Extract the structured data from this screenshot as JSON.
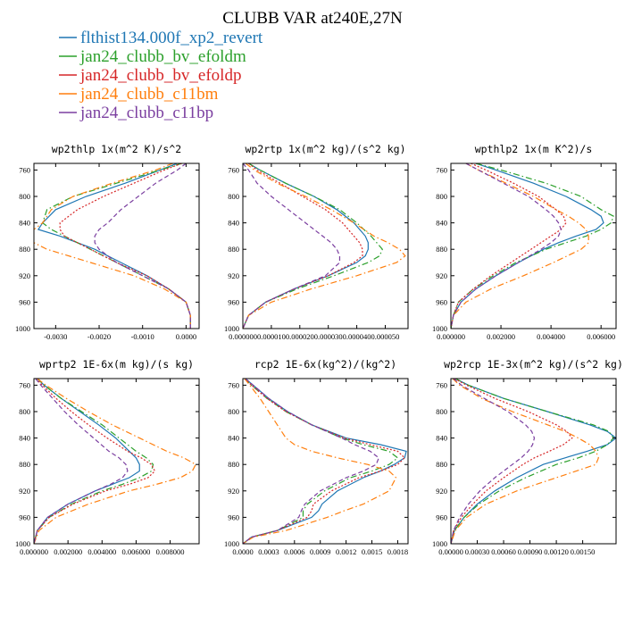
{
  "figure_title": "CLUBB VAR at240E,27N",
  "colors": {
    "flthist134.000f_xp2_revert": "#1f77b4",
    "jan24_clubb_bv_efoldm": "#2ca02c",
    "jan24_clubb_bv_efoldp": "#d62728",
    "jan24_clubb_c11bm": "#ff7f0e",
    "jan24_clubb_c11bp": "#7b3fa0"
  },
  "legend": [
    {
      "label": "flthist134.000f_xp2_revert",
      "color": "#1f77b4",
      "dash": "solid"
    },
    {
      "label": "jan24_clubb_bv_efoldm",
      "color": "#2ca02c",
      "dash": "dashdot"
    },
    {
      "label": "jan24_clubb_bv_efoldp",
      "color": "#d62728",
      "dash": "dotted"
    },
    {
      "label": "jan24_clubb_c11bm",
      "color": "#ff7f0e",
      "dash": "dashdot"
    },
    {
      "label": "jan24_clubb_c11bp",
      "color": "#7b3fa0",
      "dash": "dashed"
    }
  ],
  "chart_data": [
    {
      "type": "line",
      "title": "wp2thlp 1x(m^2 K)/s^2",
      "xlim": [
        -0.0035,
        0.0003
      ],
      "ylim": [
        1000,
        750
      ],
      "xticks": [
        -0.003,
        -0.002,
        -0.001,
        0.0
      ],
      "xtick_labels": [
        "-0.0030",
        "-0.0020",
        "-0.0010",
        "0.0000"
      ],
      "yticks": [
        760,
        800,
        840,
        880,
        920,
        960,
        1000
      ],
      "y": [
        750,
        760,
        780,
        800,
        820,
        840,
        850,
        860,
        870,
        880,
        900,
        920,
        940,
        960,
        980,
        1000
      ],
      "series": [
        {
          "name": "flthist134.000f_xp2_revert",
          "x": [
            -0.0002,
            -0.0006,
            -0.0014,
            -0.0023,
            -0.003,
            -0.0033,
            -0.0034,
            -0.0029,
            -0.0025,
            -0.0021,
            -0.0015,
            -0.0009,
            -0.0004,
            0.0,
            0.0001,
            0.0001
          ]
        },
        {
          "name": "jan24_clubb_bv_efoldm",
          "x": [
            -0.0001,
            -0.0006,
            -0.0016,
            -0.0026,
            -0.0032,
            -0.0033,
            -0.0031,
            -0.0028,
            -0.0025,
            -0.0022,
            -0.0016,
            -0.001,
            -0.0004,
            0.0,
            0.0001,
            0.0001
          ]
        },
        {
          "name": "jan24_clubb_bv_efoldp",
          "x": [
            -0.0001,
            -0.0005,
            -0.0012,
            -0.0019,
            -0.0025,
            -0.0029,
            -0.0029,
            -0.0028,
            -0.0025,
            -0.0022,
            -0.0016,
            -0.0009,
            -0.0004,
            0.0,
            0.0001,
            0.0001
          ]
        },
        {
          "name": "jan24_clubb_c11bm",
          "x": [
            -0.0003,
            -0.0007,
            -0.0017,
            -0.0026,
            -0.0031,
            -0.0033,
            -0.0035,
            -0.0036,
            -0.0035,
            -0.0032,
            -0.0022,
            -0.0012,
            -0.0005,
            0.0,
            0.0001,
            0.0001
          ]
        },
        {
          "name": "jan24_clubb_c11bp",
          "x": [
            -0.0,
            -0.0002,
            -0.0007,
            -0.0011,
            -0.0015,
            -0.0018,
            -0.002,
            -0.0021,
            -0.0021,
            -0.002,
            -0.0016,
            -0.001,
            -0.0004,
            0.0,
            0.0001,
            0.0001
          ]
        }
      ]
    },
    {
      "type": "line",
      "title": "wp2rtp 1x(m^2 kg)/(s^2 kg)",
      "xlim": [
        0.0,
        5.8e-05
      ],
      "ylim": [
        1000,
        750
      ],
      "xticks": [
        0.0,
        1e-05,
        2e-05,
        3e-05,
        4e-05,
        5e-05
      ],
      "xtick_labels": [
        "0.000000",
        "0.000010",
        "0.000020",
        "0.000030",
        "0.000040",
        "0.000050"
      ],
      "yticks": [
        760,
        800,
        840,
        880,
        920,
        960,
        1000
      ],
      "y": [
        750,
        760,
        780,
        800,
        820,
        840,
        860,
        870,
        880,
        890,
        900,
        920,
        940,
        960,
        980,
        1000
      ],
      "series": [
        {
          "name": "flthist134.000f_xp2_revert",
          "x": [
            2e-06,
            6e-06,
            1.5e-05,
            2.5e-05,
            3.3e-05,
            3.9e-05,
            4.3e-05,
            4.4e-05,
            4.4e-05,
            4.3e-05,
            4e-05,
            3e-05,
            1.8e-05,
            8e-06,
            2e-06,
            0.0
          ]
        },
        {
          "name": "jan24_clubb_bv_efoldm",
          "x": [
            2e-06,
            6e-06,
            1.5e-05,
            2.5e-05,
            3.4e-05,
            4e-05,
            4.5e-05,
            4.7e-05,
            4.9e-05,
            4.8e-05,
            4.4e-05,
            3.2e-05,
            1.9e-05,
            8e-06,
            2e-06,
            0.0
          ]
        },
        {
          "name": "jan24_clubb_bv_efoldp",
          "x": [
            2e-06,
            5e-06,
            1.3e-05,
            2.1e-05,
            2.9e-05,
            3.5e-05,
            3.9e-05,
            4.1e-05,
            4.2e-05,
            4.2e-05,
            3.9e-05,
            3e-05,
            1.8e-05,
            8e-06,
            2e-06,
            0.0
          ]
        },
        {
          "name": "jan24_clubb_c11bm",
          "x": [
            1e-06,
            4e-06,
            1.2e-05,
            2.2e-05,
            3.1e-05,
            3.9e-05,
            4.6e-05,
            5.1e-05,
            5.5e-05,
            5.7e-05,
            5.4e-05,
            4e-05,
            2.4e-05,
            1e-05,
            2e-06,
            0.0
          ]
        },
        {
          "name": "jan24_clubb_c11bp",
          "x": [
            0.0,
            2e-06,
            5e-06,
            1e-05,
            1.6e-05,
            2.2e-05,
            2.8e-05,
            3.1e-05,
            3.3e-05,
            3.4e-05,
            3.4e-05,
            2.9e-05,
            1.8e-05,
            8e-06,
            2e-06,
            0.0
          ]
        }
      ]
    },
    {
      "type": "line",
      "title": "wpthlp2 1x(m K^2)/s",
      "xlim": [
        0.0,
        0.0066
      ],
      "ylim": [
        1000,
        750
      ],
      "xticks": [
        0.0,
        0.002,
        0.004,
        0.006
      ],
      "xtick_labels": [
        "0.000000",
        "0.002000",
        "0.004000",
        "0.006000"
      ],
      "yticks": [
        760,
        800,
        840,
        880,
        920,
        960,
        1000
      ],
      "y": [
        750,
        760,
        780,
        800,
        820,
        830,
        840,
        850,
        860,
        870,
        880,
        900,
        920,
        940,
        960,
        980,
        1000
      ],
      "series": [
        {
          "name": "flthist134.000f_xp2_revert",
          "x": [
            0.001,
            0.0018,
            0.0033,
            0.0046,
            0.0056,
            0.006,
            0.0061,
            0.0058,
            0.005,
            0.0043,
            0.0037,
            0.0027,
            0.0018,
            0.001,
            0.0004,
            0.0001,
            0.0
          ]
        },
        {
          "name": "jan24_clubb_bv_efoldm",
          "x": [
            0.001,
            0.002,
            0.0038,
            0.0052,
            0.006,
            0.0065,
            0.0064,
            0.006,
            0.0054,
            0.0046,
            0.0038,
            0.0026,
            0.0017,
            0.0009,
            0.0003,
            0.0001,
            0.0
          ]
        },
        {
          "name": "jan24_clubb_bv_efoldp",
          "x": [
            0.0008,
            0.0014,
            0.0025,
            0.0035,
            0.0042,
            0.0045,
            0.0046,
            0.0044,
            0.004,
            0.0036,
            0.0032,
            0.0024,
            0.0016,
            0.0009,
            0.0003,
            0.0001,
            0.0
          ]
        },
        {
          "name": "jan24_clubb_c11bm",
          "x": [
            0.0006,
            0.0011,
            0.0022,
            0.0033,
            0.0042,
            0.0047,
            0.0051,
            0.0054,
            0.0055,
            0.0055,
            0.0052,
            0.0041,
            0.0029,
            0.0016,
            0.0006,
            0.0001,
            0.0
          ]
        },
        {
          "name": "jan24_clubb_c11bp",
          "x": [
            0.0006,
            0.0011,
            0.0021,
            0.0031,
            0.0038,
            0.0041,
            0.0043,
            0.0044,
            0.0043,
            0.004,
            0.0036,
            0.0027,
            0.0018,
            0.001,
            0.0004,
            0.0001,
            0.0
          ]
        }
      ]
    },
    {
      "type": "line",
      "title": "wprtp2 1E-6x(m kg)/(s kg)",
      "xlim": [
        0.0,
        0.0097
      ],
      "ylim": [
        1000,
        750
      ],
      "xticks": [
        0.0,
        0.002,
        0.004,
        0.006,
        0.008
      ],
      "xtick_labels": [
        "0.000000",
        "0.002000",
        "0.004000",
        "0.006000",
        "0.008000"
      ],
      "yticks": [
        760,
        800,
        840,
        880,
        920,
        960,
        1000
      ],
      "y": [
        750,
        760,
        780,
        800,
        820,
        840,
        860,
        870,
        880,
        890,
        900,
        910,
        920,
        940,
        960,
        980,
        1000
      ],
      "series": [
        {
          "name": "flthist134.000f_xp2_revert",
          "x": [
            0.0002,
            0.0006,
            0.0016,
            0.0027,
            0.0038,
            0.0048,
            0.0056,
            0.006,
            0.0062,
            0.0062,
            0.0056,
            0.0046,
            0.0036,
            0.002,
            0.0008,
            0.0002,
            0.0
          ]
        },
        {
          "name": "jan24_clubb_bv_efoldm",
          "x": [
            0.0002,
            0.0006,
            0.0016,
            0.0028,
            0.004,
            0.005,
            0.006,
            0.0066,
            0.007,
            0.0069,
            0.0062,
            0.0052,
            0.004,
            0.0022,
            0.0009,
            0.0002,
            0.0
          ]
        },
        {
          "name": "jan24_clubb_bv_efoldp",
          "x": [
            0.0001,
            0.0005,
            0.0013,
            0.0022,
            0.0032,
            0.0043,
            0.0055,
            0.0063,
            0.0069,
            0.0071,
            0.0067,
            0.0056,
            0.0042,
            0.0023,
            0.0009,
            0.0002,
            0.0
          ]
        },
        {
          "name": "jan24_clubb_c11bm",
          "x": [
            0.0002,
            0.0007,
            0.0019,
            0.0032,
            0.0046,
            0.0062,
            0.0078,
            0.0088,
            0.0095,
            0.0093,
            0.0086,
            0.0072,
            0.0056,
            0.0032,
            0.0013,
            0.0003,
            0.0
          ]
        },
        {
          "name": "jan24_clubb_c11bp",
          "x": [
            0.0001,
            0.0004,
            0.0011,
            0.0018,
            0.0026,
            0.0035,
            0.0044,
            0.005,
            0.0054,
            0.0055,
            0.0052,
            0.0045,
            0.0036,
            0.002,
            0.0008,
            0.0002,
            0.0
          ]
        }
      ]
    },
    {
      "type": "line",
      "title": "rcp2 1E-6x(kg^2)/(kg^2)",
      "xlim": [
        0.0,
        0.00192
      ],
      "ylim": [
        1000,
        750
      ],
      "xticks": [
        0.0,
        0.0003,
        0.0006,
        0.0009,
        0.0012,
        0.0015,
        0.0018
      ],
      "xtick_labels": [
        "0.0000",
        "0.0003",
        "0.0006",
        "0.0009",
        "0.0012",
        "0.0015",
        "0.0018"
      ],
      "yticks": [
        760,
        800,
        840,
        880,
        920,
        960,
        1000
      ],
      "y": [
        750,
        760,
        780,
        800,
        820,
        840,
        850,
        860,
        870,
        880,
        890,
        900,
        920,
        940,
        950,
        960,
        980,
        990,
        1000
      ],
      "series": [
        {
          "name": "flthist134.000f_xp2_revert",
          "x": [
            3e-05,
            0.00012,
            0.0003,
            0.00052,
            0.0008,
            0.0012,
            0.0016,
            0.0019,
            0.00188,
            0.00176,
            0.0016,
            0.0014,
            0.0011,
            0.00092,
            0.00088,
            0.0008,
            0.0004,
            0.0001,
            0.0
          ]
        },
        {
          "name": "jan24_clubb_bv_efoldm",
          "x": [
            2e-05,
            0.0001,
            0.00028,
            0.0005,
            0.0008,
            0.00115,
            0.0014,
            0.0017,
            0.0018,
            0.0017,
            0.0015,
            0.00125,
            0.00095,
            0.00075,
            0.0007,
            0.0007,
            0.0004,
            0.0001,
            0.0
          ]
        },
        {
          "name": "jan24_clubb_bv_efoldp",
          "x": [
            2e-05,
            0.0001,
            0.00028,
            0.0005,
            0.0008,
            0.00118,
            0.00148,
            0.0018,
            0.00188,
            0.0018,
            0.0016,
            0.00135,
            0.00103,
            0.00082,
            0.0008,
            0.00075,
            0.0004,
            0.0001,
            0.0
          ]
        },
        {
          "name": "jan24_clubb_c11bm",
          "x": [
            2e-05,
            8e-05,
            0.0002,
            0.0003,
            0.0004,
            0.0005,
            0.0006,
            0.0008,
            0.0011,
            0.00145,
            0.0017,
            0.00178,
            0.0017,
            0.0014,
            0.00118,
            0.00098,
            0.0005,
            0.00012,
            0.0
          ]
        },
        {
          "name": "jan24_clubb_c11bp",
          "x": [
            3e-05,
            0.00012,
            0.0003,
            0.00052,
            0.0008,
            0.00115,
            0.0013,
            0.00148,
            0.00158,
            0.00155,
            0.0014,
            0.0012,
            0.0009,
            0.00072,
            0.00068,
            0.00065,
            0.0004,
            0.0001,
            0.0
          ]
        }
      ]
    },
    {
      "type": "line",
      "title": "wp2rcp 1E-3x(m^2 kg)/(s^2 kg)",
      "xlim": [
        0.0,
        0.00188
      ],
      "ylim": [
        1000,
        750
      ],
      "xticks": [
        0.0,
        0.0003,
        0.0006,
        0.0009,
        0.0012,
        0.0015
      ],
      "xtick_labels": [
        "0.00000",
        "0.00030",
        "0.00060",
        "0.00090",
        "0.00120",
        "0.00150"
      ],
      "yticks": [
        760,
        800,
        840,
        880,
        920,
        960,
        1000
      ],
      "y": [
        750,
        760,
        780,
        800,
        820,
        830,
        840,
        850,
        860,
        870,
        880,
        900,
        920,
        940,
        960,
        980,
        1000
      ],
      "series": [
        {
          "name": "flthist134.000f_xp2_revert",
          "x": [
            5e-05,
            0.0002,
            0.0006,
            0.0011,
            0.00158,
            0.00178,
            0.00188,
            0.00178,
            0.00155,
            0.0013,
            0.00105,
            0.00075,
            0.0005,
            0.0003,
            0.00015,
            4e-05,
            0.0
          ]
        },
        {
          "name": "jan24_clubb_bv_efoldm",
          "x": [
            5e-05,
            0.0002,
            0.0006,
            0.0011,
            0.00162,
            0.0018,
            0.00185,
            0.00178,
            0.00165,
            0.00145,
            0.0012,
            0.00085,
            0.00055,
            0.00032,
            0.00015,
            4e-05,
            0.0
          ]
        },
        {
          "name": "jan24_clubb_bv_efoldp",
          "x": [
            4e-05,
            0.00018,
            0.0005,
            0.00088,
            0.0012,
            0.00132,
            0.00138,
            0.00128,
            0.00112,
            0.00095,
            0.00082,
            0.0006,
            0.0004,
            0.00025,
            0.00012,
            3e-05,
            0.0
          ]
        },
        {
          "name": "jan24_clubb_c11bm",
          "x": [
            2e-05,
            0.0001,
            0.00035,
            0.0007,
            0.0011,
            0.0013,
            0.00145,
            0.00158,
            0.00165,
            0.00168,
            0.00165,
            0.0012,
            0.00075,
            0.0004,
            0.00018,
            5e-05,
            0.0
          ]
        },
        {
          "name": "jan24_clubb_c11bp",
          "x": [
            3e-05,
            0.00012,
            0.00038,
            0.00065,
            0.00085,
            0.00092,
            0.00095,
            0.00093,
            0.00088,
            0.0008,
            0.0007,
            0.0005,
            0.00033,
            0.0002,
            0.0001,
            3e-05,
            0.0
          ]
        }
      ]
    }
  ]
}
